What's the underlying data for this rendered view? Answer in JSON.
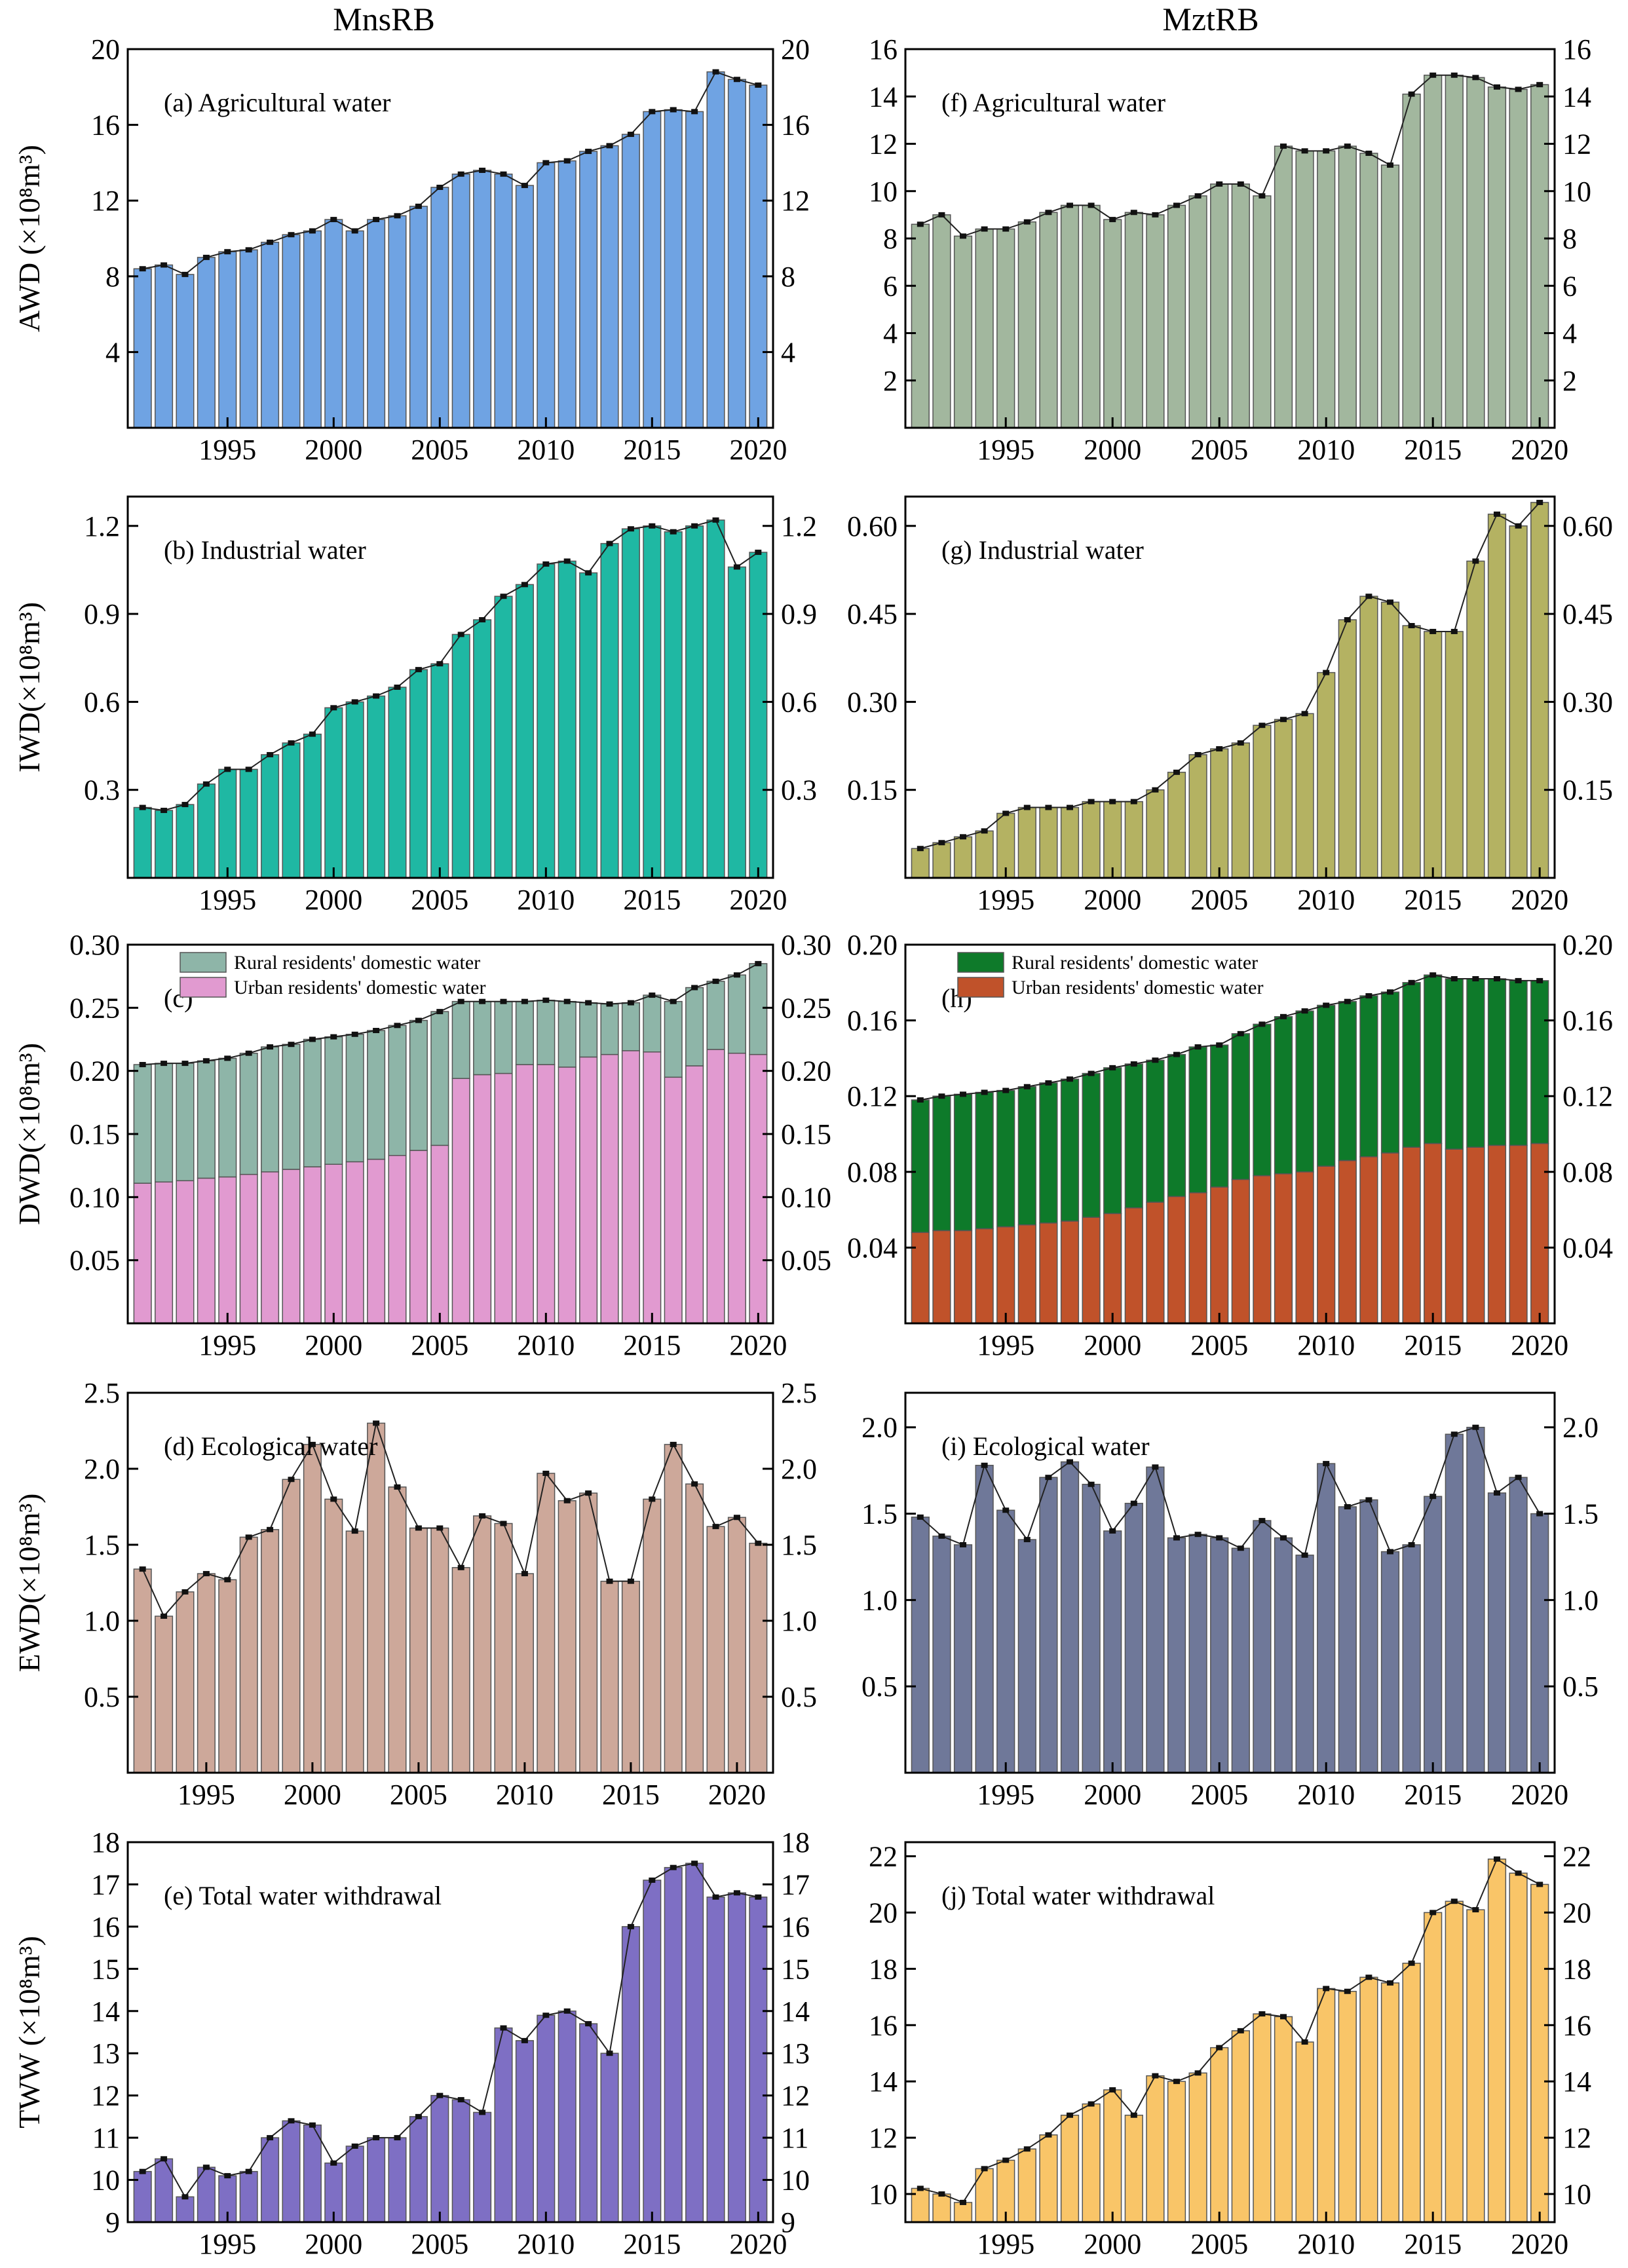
{
  "columns": [
    "MnsRB",
    "MztRB"
  ],
  "chart_data": [
    {
      "id": "a",
      "type": "bar",
      "title": "(a)  Agricultural water",
      "ylabel": "AWD (×10⁸m³)",
      "color": "#6FA3E3",
      "x_start": 1991,
      "ylim": [
        0,
        20
      ],
      "yticks": [
        4,
        8,
        12,
        16,
        20
      ],
      "xticks": [
        1995,
        2000,
        2005,
        2010,
        2015,
        2020
      ],
      "values": [
        8.4,
        8.6,
        8.1,
        9.0,
        9.3,
        9.4,
        9.8,
        10.2,
        10.4,
        11.0,
        10.4,
        11.0,
        11.2,
        11.7,
        12.7,
        13.4,
        13.6,
        13.4,
        12.8,
        14.0,
        14.1,
        14.6,
        14.9,
        15.5,
        16.7,
        16.8,
        16.7,
        18.8,
        18.4,
        18.1
      ]
    },
    {
      "id": "b",
      "type": "bar",
      "title": "(b)  Industrial water",
      "ylabel": "IWD(×10⁸m³)",
      "color": "#1FB8A3",
      "x_start": 1991,
      "ylim": [
        0,
        1.3
      ],
      "yticks": [
        0.3,
        0.6,
        0.9,
        1.2
      ],
      "ytick_labels": [
        "0.3",
        "0.6",
        "0.9",
        "1.2"
      ],
      "xticks": [
        1995,
        2000,
        2005,
        2010,
        2015,
        2020
      ],
      "values": [
        0.24,
        0.23,
        0.25,
        0.32,
        0.37,
        0.37,
        0.42,
        0.46,
        0.49,
        0.58,
        0.6,
        0.62,
        0.65,
        0.71,
        0.73,
        0.83,
        0.88,
        0.96,
        1.0,
        1.07,
        1.08,
        1.04,
        1.14,
        1.19,
        1.2,
        1.18,
        1.2,
        1.22,
        1.06,
        1.11
      ]
    },
    {
      "id": "c",
      "type": "stacked_bar",
      "title": "(c)",
      "ylabel": "DWD(×10⁸m³)",
      "x_start": 1991,
      "ylim": [
        0,
        0.3
      ],
      "yticks": [
        0.05,
        0.1,
        0.15,
        0.2,
        0.25,
        0.3
      ],
      "ytick_labels": [
        "0.05",
        "0.10",
        "0.15",
        "0.20",
        "0.25",
        "0.30"
      ],
      "xticks": [
        1995,
        2000,
        2005,
        2010,
        2015,
        2020
      ],
      "series": [
        {
          "name": "Urban residents' domestic water",
          "color": "#E19AD0",
          "values": [
            0.111,
            0.112,
            0.113,
            0.115,
            0.116,
            0.118,
            0.12,
            0.122,
            0.124,
            0.126,
            0.128,
            0.13,
            0.133,
            0.137,
            0.141,
            0.194,
            0.197,
            0.198,
            0.205,
            0.205,
            0.203,
            0.211,
            0.213,
            0.216,
            0.215,
            0.195,
            0.204,
            0.217,
            0.214,
            0.213
          ]
        },
        {
          "name": "Rural residents' domestic water",
          "color": "#8EB5A8",
          "values": [
            0.094,
            0.094,
            0.093,
            0.093,
            0.094,
            0.096,
            0.099,
            0.099,
            0.101,
            0.101,
            0.101,
            0.102,
            0.103,
            0.103,
            0.106,
            0.061,
            0.058,
            0.057,
            0.05,
            0.051,
            0.052,
            0.043,
            0.04,
            0.038,
            0.045,
            0.06,
            0.062,
            0.054,
            0.062,
            0.072
          ]
        }
      ]
    },
    {
      "id": "d",
      "type": "bar",
      "title": "(d)  Ecological water",
      "ylabel": "EWD(×10⁸m³)",
      "color": "#CDA89A",
      "x_start": 1992,
      "ylim": [
        0,
        2.5
      ],
      "yticks": [
        0.5,
        1.0,
        1.5,
        2.0,
        2.5
      ],
      "ytick_labels": [
        "0.5",
        "1.0",
        "1.5",
        "2.0",
        "2.5"
      ],
      "xticks": [
        1995,
        2000,
        2005,
        2010,
        2015,
        2020
      ],
      "values": [
        1.34,
        1.03,
        1.19,
        1.31,
        1.27,
        1.55,
        1.6,
        1.93,
        2.16,
        1.8,
        1.59,
        2.3,
        1.88,
        1.61,
        1.61,
        1.35,
        1.69,
        1.64,
        1.31,
        1.97,
        1.79,
        1.84,
        1.26,
        1.26,
        1.8,
        2.16,
        1.9,
        1.62,
        1.68,
        1.51
      ]
    },
    {
      "id": "e",
      "type": "bar",
      "title": "(e)  Total water withdrawal",
      "ylabel": "TWW (×10⁸m³)",
      "color": "#7E6FC4",
      "x_start": 1991,
      "ylim": [
        9,
        18
      ],
      "yticks": [
        9,
        10,
        11,
        12,
        13,
        14,
        15,
        16,
        17,
        18
      ],
      "xticks": [
        1995,
        2000,
        2005,
        2010,
        2015,
        2020
      ],
      "values": [
        10.2,
        10.5,
        9.6,
        10.3,
        10.1,
        10.2,
        11.0,
        11.4,
        11.3,
        10.4,
        10.8,
        11.0,
        11.0,
        11.5,
        12.0,
        11.9,
        11.6,
        13.6,
        13.3,
        13.9,
        14.0,
        13.7,
        13.0,
        16.0,
        17.1,
        17.4,
        17.5,
        16.7,
        16.8,
        16.7
      ]
    },
    {
      "id": "f",
      "type": "bar",
      "title": "(f)  Agricultural water",
      "ylabel": "",
      "color": "#A2B79E",
      "x_start": 1991,
      "ylim": [
        0,
        16
      ],
      "yticks": [
        2,
        4,
        6,
        8,
        10,
        12,
        14,
        16
      ],
      "xticks": [
        1995,
        2000,
        2005,
        2010,
        2015,
        2020
      ],
      "values": [
        8.6,
        9.0,
        8.1,
        8.4,
        8.4,
        8.7,
        9.1,
        9.4,
        9.4,
        8.8,
        9.1,
        9.0,
        9.4,
        9.8,
        10.3,
        10.3,
        9.8,
        11.9,
        11.7,
        11.7,
        11.9,
        11.6,
        11.1,
        14.1,
        14.9,
        14.9,
        14.8,
        14.4,
        14.3,
        14.5
      ]
    },
    {
      "id": "g",
      "type": "bar",
      "title": "(g)  Industrial water",
      "ylabel": "",
      "color": "#B4B262",
      "x_start": 1991,
      "ylim": [
        0,
        0.65
      ],
      "yticks": [
        0.15,
        0.3,
        0.45,
        0.6
      ],
      "ytick_labels": [
        "0.15",
        "0.30",
        "0.45",
        "0.60"
      ],
      "xticks": [
        1995,
        2000,
        2005,
        2010,
        2015,
        2020
      ],
      "values": [
        0.05,
        0.06,
        0.07,
        0.08,
        0.11,
        0.12,
        0.12,
        0.12,
        0.13,
        0.13,
        0.13,
        0.15,
        0.18,
        0.21,
        0.22,
        0.23,
        0.26,
        0.27,
        0.28,
        0.35,
        0.44,
        0.48,
        0.47,
        0.43,
        0.42,
        0.42,
        0.54,
        0.62,
        0.6,
        0.64
      ]
    },
    {
      "id": "h",
      "type": "stacked_bar",
      "title": "(h)",
      "ylabel": "",
      "x_start": 1991,
      "ylim": [
        0,
        0.2
      ],
      "yticks": [
        0.04,
        0.08,
        0.12,
        0.16,
        0.2
      ],
      "ytick_labels": [
        "0.04",
        "0.08",
        "0.12",
        "0.16",
        "0.20"
      ],
      "xticks": [
        1995,
        2000,
        2005,
        2010,
        2015,
        2020
      ],
      "series": [
        {
          "name": "Urban residents' domestic water",
          "color": "#C0522A",
          "values": [
            0.048,
            0.049,
            0.049,
            0.05,
            0.051,
            0.052,
            0.053,
            0.054,
            0.056,
            0.058,
            0.061,
            0.064,
            0.067,
            0.069,
            0.072,
            0.076,
            0.078,
            0.079,
            0.08,
            0.083,
            0.086,
            0.088,
            0.09,
            0.093,
            0.095,
            0.092,
            0.093,
            0.094,
            0.094,
            0.095
          ]
        },
        {
          "name": "Rural residents' domestic water",
          "color": "#0E7A2A",
          "values": [
            0.07,
            0.071,
            0.072,
            0.072,
            0.072,
            0.073,
            0.074,
            0.075,
            0.076,
            0.077,
            0.076,
            0.075,
            0.075,
            0.077,
            0.075,
            0.077,
            0.08,
            0.083,
            0.085,
            0.085,
            0.084,
            0.085,
            0.085,
            0.087,
            0.089,
            0.09,
            0.089,
            0.088,
            0.087,
            0.086
          ]
        }
      ]
    },
    {
      "id": "i",
      "type": "bar",
      "title": "(i)  Ecological water",
      "ylabel": "",
      "color": "#6F7899",
      "x_start": 1991,
      "ylim": [
        0,
        2.2
      ],
      "yticks": [
        0.5,
        1.0,
        1.5,
        2.0
      ],
      "ytick_labels": [
        "0.5",
        "1.0",
        "1.5",
        "2.0"
      ],
      "xticks": [
        1995,
        2000,
        2005,
        2010,
        2015,
        2020
      ],
      "values": [
        1.48,
        1.37,
        1.32,
        1.78,
        1.52,
        1.35,
        1.71,
        1.8,
        1.67,
        1.4,
        1.56,
        1.77,
        1.36,
        1.38,
        1.36,
        1.3,
        1.46,
        1.36,
        1.26,
        1.79,
        1.54,
        1.58,
        1.28,
        1.32,
        1.6,
        1.96,
        2.0,
        1.62,
        1.71,
        1.5
      ]
    },
    {
      "id": "j",
      "type": "bar",
      "title": "(j)  Total water withdrawal",
      "ylabel": "",
      "color": "#F9C568",
      "x_start": 1991,
      "ylim": [
        9,
        22.5
      ],
      "yticks": [
        10,
        12,
        14,
        16,
        18,
        20,
        22
      ],
      "xticks": [
        1995,
        2000,
        2005,
        2010,
        2015,
        2020
      ],
      "values": [
        10.2,
        10.0,
        9.7,
        10.9,
        11.2,
        11.6,
        12.1,
        12.8,
        13.2,
        13.7,
        12.8,
        14.2,
        14.0,
        14.3,
        15.2,
        15.8,
        16.4,
        16.3,
        15.4,
        17.3,
        17.2,
        17.7,
        17.5,
        18.2,
        20.0,
        20.4,
        20.1,
        21.9,
        21.4,
        21.0
      ]
    }
  ]
}
